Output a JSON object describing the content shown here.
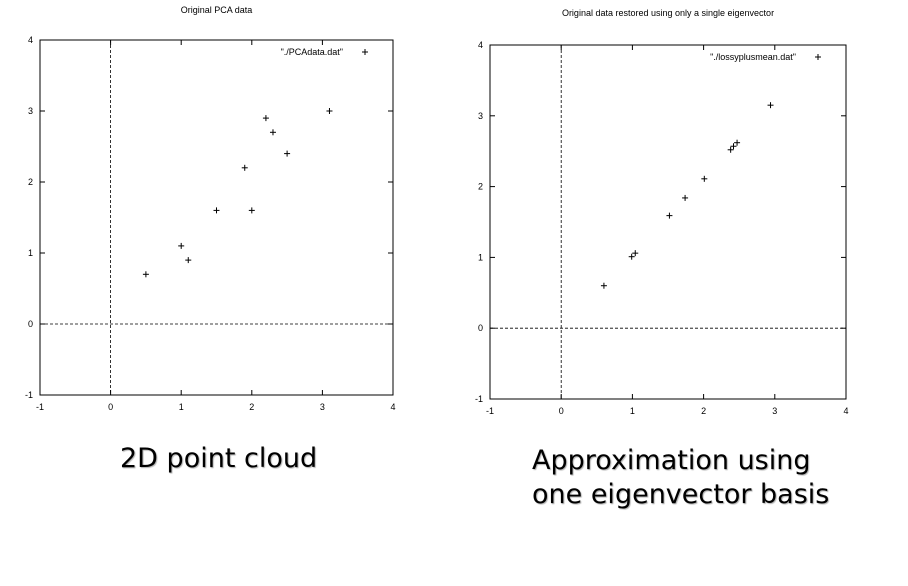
{
  "chart_data": [
    {
      "type": "scatter",
      "title": "Original PCA data",
      "xlim": [
        -1,
        4
      ],
      "ylim": [
        -1,
        4
      ],
      "xticks": [
        "-1",
        "0",
        "1",
        "2",
        "3",
        "4"
      ],
      "yticks": [
        "-1",
        "0",
        "1",
        "2",
        "3",
        "4"
      ],
      "grid": false,
      "zero_axes": true,
      "legend_position": "top-right",
      "series": [
        {
          "name": "\"./PCAdata.dat\"",
          "marker": "+",
          "x": [
            2.5,
            0.5,
            2.2,
            1.9,
            3.1,
            2.3,
            2.0,
            1.0,
            1.5,
            1.1
          ],
          "y": [
            2.4,
            0.7,
            2.9,
            2.2,
            3.0,
            2.7,
            1.6,
            1.1,
            1.6,
            0.9
          ]
        }
      ]
    },
    {
      "type": "scatter",
      "title": "Original data restored using only a single eigenvector",
      "xlim": [
        -1,
        4
      ],
      "ylim": [
        -1,
        4
      ],
      "xticks": [
        "-1",
        "0",
        "1",
        "2",
        "3",
        "4"
      ],
      "yticks": [
        "-1",
        "0",
        "1",
        "2",
        "3",
        "4"
      ],
      "grid": false,
      "zero_axes": true,
      "legend_position": "top-right",
      "series": [
        {
          "name": "\"./lossyplusmean.dat\"",
          "marker": "+",
          "x": [
            0.6,
            0.99,
            1.04,
            1.52,
            1.74,
            2.01,
            2.38,
            2.42,
            2.47,
            2.94
          ],
          "y": [
            0.6,
            1.01,
            1.06,
            1.59,
            1.84,
            2.11,
            2.52,
            2.57,
            2.62,
            3.15
          ]
        }
      ]
    }
  ],
  "captions": {
    "left": "2D point cloud",
    "right_line1": "Approximation using",
    "right_line2": "one eigenvector basis"
  }
}
